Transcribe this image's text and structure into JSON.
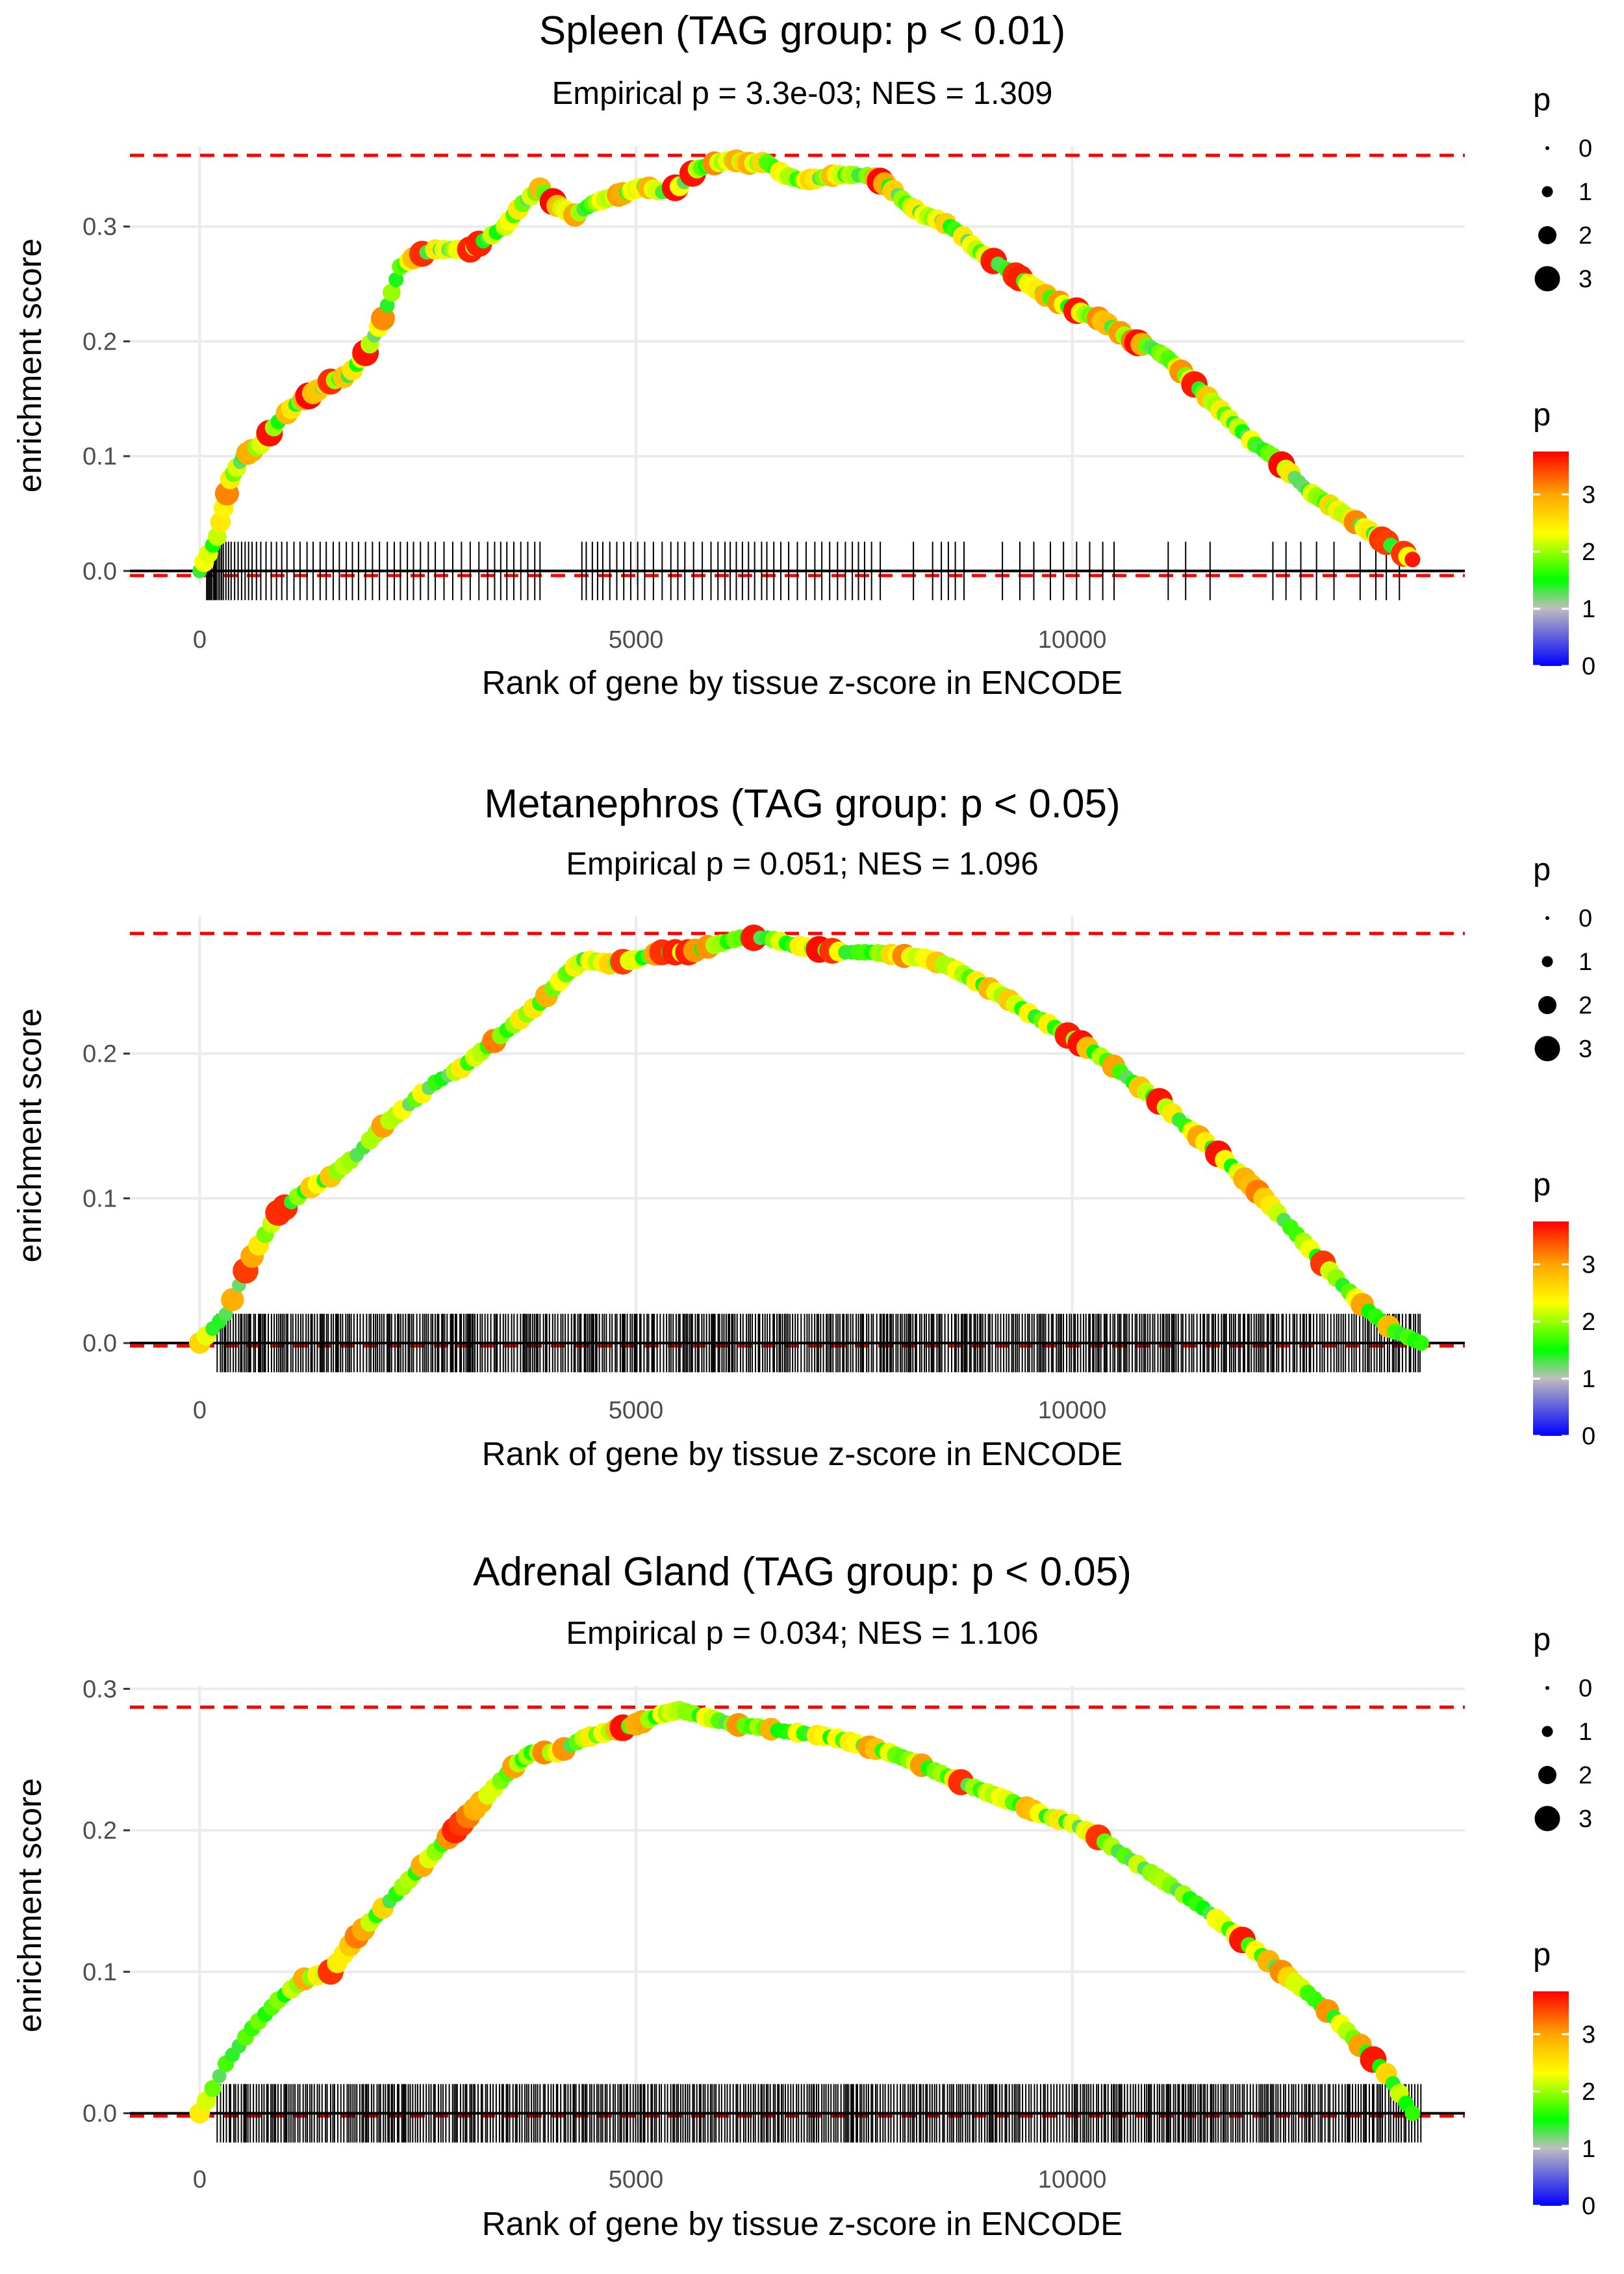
{
  "chart_data": [
    {
      "type": "line",
      "title": "Spleen (TAG group: p < 0.01)",
      "subtitle": "Empirical p = 3.3e-03; NES = 1.309",
      "xlabel": "Rank of gene by tissue z-score in ENCODE",
      "ylabel": "enrichment score",
      "xlim": [
        -800,
        14500
      ],
      "ylim": [
        -0.012,
        0.37
      ],
      "x_ticks": [
        0,
        5000,
        10000
      ],
      "x_tick_labels": [
        "0",
        "5000",
        "10000"
      ],
      "y_ticks": [
        0.0,
        0.1,
        0.2,
        0.3
      ],
      "y_tick_labels": [
        "0.0",
        "0.1",
        "0.2",
        "0.3"
      ],
      "max_es": 0.362,
      "min_es": -0.004,
      "x": [
        0,
        200,
        350,
        500,
        700,
        900,
        1100,
        1300,
        1500,
        1700,
        1900,
        2100,
        2300,
        2500,
        2700,
        2900,
        3100,
        3300,
        3500,
        3700,
        3900,
        4100,
        4300,
        4500,
        4700,
        4900,
        5100,
        5300,
        5500,
        5700,
        5900,
        6100,
        6300,
        6500,
        6700,
        6900,
        7100,
        7300,
        7500,
        7700,
        7900,
        8100,
        8300,
        8500,
        8700,
        8900,
        9100,
        9300,
        9500,
        9700,
        9900,
        10100,
        10300,
        10500,
        10700,
        10900,
        11100,
        11300,
        11500,
        11700,
        11900,
        12100,
        12300,
        12500,
        12700,
        12900,
        13100,
        13300,
        13500,
        13700,
        13900
      ],
      "y": [
        0.0,
        0.03,
        0.08,
        0.1,
        0.11,
        0.13,
        0.145,
        0.155,
        0.165,
        0.17,
        0.19,
        0.22,
        0.265,
        0.275,
        0.28,
        0.28,
        0.28,
        0.29,
        0.3,
        0.32,
        0.333,
        0.318,
        0.31,
        0.32,
        0.325,
        0.33,
        0.335,
        0.33,
        0.335,
        0.35,
        0.355,
        0.358,
        0.355,
        0.356,
        0.345,
        0.34,
        0.342,
        0.345,
        0.345,
        0.344,
        0.335,
        0.32,
        0.31,
        0.305,
        0.295,
        0.28,
        0.27,
        0.26,
        0.25,
        0.24,
        0.232,
        0.225,
        0.22,
        0.21,
        0.2,
        0.195,
        0.185,
        0.17,
        0.155,
        0.14,
        0.125,
        0.11,
        0.1,
        0.085,
        0.07,
        0.06,
        0.05,
        0.04,
        0.03,
        0.02,
        0.01
      ],
      "hits": [
        80,
        95,
        110,
        125,
        140,
        160,
        175,
        190,
        210,
        230,
        250,
        270,
        300,
        330,
        360,
        400,
        440,
        480,
        520,
        560,
        600,
        650,
        700,
        760,
        820,
        880,
        940,
        1000,
        1080,
        1150,
        1230,
        1300,
        1380,
        1450,
        1530,
        1600,
        1680,
        1750,
        1820,
        1900,
        1980,
        2060,
        2150,
        2230,
        2300,
        2380,
        2450,
        2530,
        2620,
        2700,
        2800,
        2900,
        3000,
        3100,
        3200,
        3300,
        3380,
        3450,
        3520,
        3600,
        3680,
        3760,
        3840,
        3900,
        4380,
        4430,
        4500,
        4560,
        4620,
        4700,
        4780,
        4860,
        4940,
        5020,
        5100,
        5200,
        5300,
        5400,
        5480,
        5560,
        5660,
        5760,
        5860,
        5940,
        6020,
        6080,
        6150,
        6220,
        6290,
        6360,
        6440,
        6500,
        6580,
        6660,
        6750,
        6850,
        6950,
        7050,
        7130,
        7220,
        7310,
        7400,
        7480,
        7550,
        7620,
        7700,
        7800,
        8180,
        8400,
        8500,
        8580,
        8660,
        8760,
        9200,
        9400,
        9560,
        9750,
        9900,
        10050,
        10200,
        10350,
        10480,
        11100,
        11300,
        11580,
        12300,
        12450,
        12620,
        12800,
        13000,
        13300,
        13480,
        13600,
        13750
      ]
    },
    {
      "type": "line",
      "title": "Metanephros (TAG group: p < 0.05)",
      "subtitle": "Empirical p = 0.051; NES = 1.096",
      "xlabel": "Rank of gene by tissue z-score in ENCODE",
      "ylabel": "enrichment score",
      "xlim": [
        -800,
        14500
      ],
      "ylim": [
        -0.008,
        0.295
      ],
      "x_ticks": [
        0,
        5000,
        10000
      ],
      "x_tick_labels": [
        "0",
        "5000",
        "10000"
      ],
      "y_ticks": [
        0.0,
        0.1,
        0.2
      ],
      "y_tick_labels": [
        "0.0",
        "0.1",
        "0.2"
      ],
      "max_es": 0.283,
      "min_es": -0.002,
      "x": [
        0,
        300,
        600,
        900,
        1200,
        1500,
        1800,
        2100,
        2400,
        2700,
        3000,
        3300,
        3600,
        3900,
        4200,
        4400,
        4700,
        5000,
        5300,
        5600,
        5900,
        6200,
        6500,
        6800,
        7100,
        7400,
        7700,
        8000,
        8300,
        8600,
        8900,
        9200,
        9500,
        9800,
        10100,
        10400,
        10700,
        11000,
        11300,
        11600,
        11900,
        12200,
        12500,
        12800,
        13100,
        13400,
        13700,
        14000
      ],
      "y": [
        0.0,
        0.02,
        0.06,
        0.09,
        0.105,
        0.115,
        0.13,
        0.15,
        0.165,
        0.18,
        0.19,
        0.205,
        0.22,
        0.235,
        0.255,
        0.265,
        0.262,
        0.265,
        0.27,
        0.27,
        0.275,
        0.28,
        0.28,
        0.275,
        0.272,
        0.27,
        0.27,
        0.268,
        0.266,
        0.26,
        0.25,
        0.24,
        0.228,
        0.218,
        0.207,
        0.195,
        0.18,
        0.167,
        0.15,
        0.135,
        0.118,
        0.1,
        0.08,
        0.06,
        0.04,
        0.022,
        0.008,
        0.0
      ]
    },
    {
      "type": "line",
      "title": "Adrenal Gland (TAG group: p < 0.05)",
      "subtitle": "Empirical p = 0.034; NES = 1.106",
      "xlabel": "Rank of gene by tissue z-score in ENCODE",
      "ylabel": "enrichment score",
      "xlim": [
        -800,
        14500
      ],
      "ylim": [
        -0.008,
        0.302
      ],
      "x_ticks": [
        0,
        5000,
        10000
      ],
      "x_tick_labels": [
        "0",
        "5000",
        "10000"
      ],
      "y_ticks": [
        0.0,
        0.1,
        0.2,
        0.3
      ],
      "y_tick_labels": [
        "0.0",
        "0.1",
        "0.2",
        "0.3"
      ],
      "max_es": 0.287,
      "min_es": -0.002,
      "x": [
        0,
        300,
        600,
        900,
        1200,
        1500,
        1800,
        2100,
        2400,
        2700,
        3000,
        3300,
        3600,
        3800,
        4100,
        4400,
        4700,
        5000,
        5300,
        5500,
        5800,
        6100,
        6400,
        6700,
        7000,
        7300,
        7600,
        7900,
        8200,
        8500,
        8800,
        9100,
        9400,
        9700,
        10000,
        10300,
        10600,
        10900,
        11200,
        11500,
        11800,
        12100,
        12400,
        12700,
        13000,
        13300,
        13600,
        13900
      ],
      "y": [
        0.0,
        0.035,
        0.06,
        0.08,
        0.095,
        0.1,
        0.125,
        0.145,
        0.165,
        0.185,
        0.205,
        0.225,
        0.245,
        0.255,
        0.255,
        0.265,
        0.27,
        0.275,
        0.282,
        0.285,
        0.28,
        0.275,
        0.273,
        0.27,
        0.268,
        0.265,
        0.26,
        0.255,
        0.248,
        0.24,
        0.232,
        0.225,
        0.218,
        0.21,
        0.205,
        0.195,
        0.182,
        0.17,
        0.158,
        0.145,
        0.13,
        0.115,
        0.1,
        0.085,
        0.068,
        0.048,
        0.028,
        0.0
      ]
    }
  ],
  "legends": {
    "size_title": "p",
    "size_labels": [
      "0",
      "1",
      "2",
      "3"
    ],
    "color_title": "p",
    "color_labels": [
      "3",
      "2",
      "1",
      "0"
    ],
    "colors": {
      "dashed_lines": "#ff0000",
      "curve": "#bebebe",
      "hits": "#000000",
      "gridlines": "#ebebeb",
      "gradient": [
        "#0000ff",
        "#bebebe",
        "#00ff00",
        "#ffff00",
        "#ff0000"
      ]
    }
  }
}
